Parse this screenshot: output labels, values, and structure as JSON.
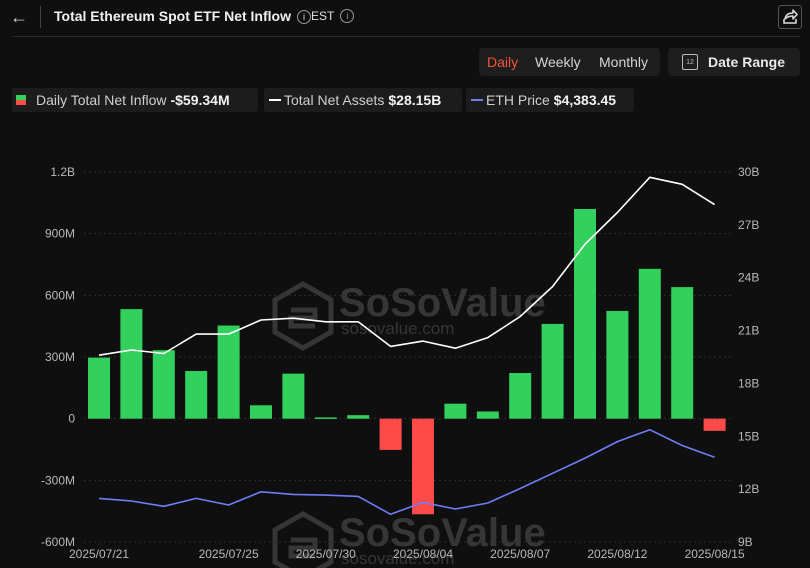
{
  "header": {
    "back_icon": "arrow-left-icon",
    "title": "Total Ethereum Spot ETF Net Inflow",
    "info_icon": "info-icon",
    "timezone": "EST",
    "share_icon": "share-icon"
  },
  "controls": {
    "tabs": [
      {
        "label": "Daily",
        "active": true
      },
      {
        "label": "Weekly",
        "active": false
      },
      {
        "label": "Monthly",
        "active": false
      }
    ],
    "date_range": {
      "icon": "calendar-icon",
      "calendar_number": "12",
      "label": "Date Range"
    }
  },
  "legend": [
    {
      "label": "Daily Total Net Inflow",
      "value": "-$59.34M",
      "color_pos": "#32d15d",
      "color_neg": "#ff4a4a"
    },
    {
      "label": "Total Net Assets",
      "value": "$28.15B",
      "color": "#ffffff"
    },
    {
      "label": "ETH Price",
      "value": "$4,383.45",
      "color": "#6f7ef5"
    }
  ],
  "watermark": {
    "brand": "SoSoValue",
    "url": "sosovalue.com"
  },
  "chart_data": {
    "type": "bar",
    "x": [
      "2025/07/21",
      "2025/07/22",
      "2025/07/23",
      "2025/07/24",
      "2025/07/25",
      "2025/07/28",
      "2025/07/29",
      "2025/07/30",
      "2025/07/31",
      "2025/08/01",
      "2025/08/04",
      "2025/08/05",
      "2025/08/06",
      "2025/08/07",
      "2025/08/08",
      "2025/08/11",
      "2025/08/12",
      "2025/08/13",
      "2025/08/14",
      "2025/08/15"
    ],
    "x_tick_labels": [
      "2025/07/21",
      "2025/07/25",
      "2025/07/30",
      "2025/08/04",
      "2025/08/07",
      "2025/08/12",
      "2025/08/15"
    ],
    "series": [
      {
        "name": "Daily Total Net Inflow",
        "type": "bar",
        "axis": "left",
        "unit": "USD millions",
        "values": [
          297,
          533,
          333,
          232,
          453,
          65,
          219,
          6,
          17,
          -152,
          -465,
          73,
          35,
          222,
          461,
          1020,
          524,
          729,
          640,
          -59.34
        ]
      },
      {
        "name": "Total Net Assets",
        "type": "line",
        "axis": "right",
        "unit": "USD billions",
        "color": "#ffffff",
        "values": [
          19.6,
          19.9,
          19.7,
          20.8,
          20.8,
          21.6,
          21.7,
          21.5,
          21.5,
          20.1,
          20.4,
          20.0,
          20.6,
          21.8,
          23.5,
          25.9,
          27.7,
          29.7,
          29.3,
          28.15
        ]
      },
      {
        "name": "ETH Price",
        "type": "line",
        "axis": "right_scaled",
        "unit": "USD",
        "color": "#6f7ef5",
        "values": [
          3760,
          3720,
          3640,
          3760,
          3660,
          3860,
          3820,
          3810,
          3790,
          3520,
          3700,
          3600,
          3690,
          3910,
          4140,
          4370,
          4620,
          4800,
          4560,
          4383.45
        ]
      }
    ],
    "y_left": {
      "ticks": [
        "1.2B",
        "900M",
        "600M",
        "300M",
        "0",
        "-300M",
        "-600M"
      ],
      "tick_values": [
        1200,
        900,
        600,
        300,
        0,
        -300,
        -600
      ],
      "ylim": [
        -600,
        1200
      ]
    },
    "y_right": {
      "ticks": [
        "30B",
        "27B",
        "24B",
        "21B",
        "18B",
        "15B",
        "12B",
        "9B"
      ],
      "tick_values": [
        30,
        27,
        24,
        21,
        18,
        15,
        12,
        9
      ],
      "ylim": [
        9,
        30
      ]
    },
    "grid": true
  }
}
